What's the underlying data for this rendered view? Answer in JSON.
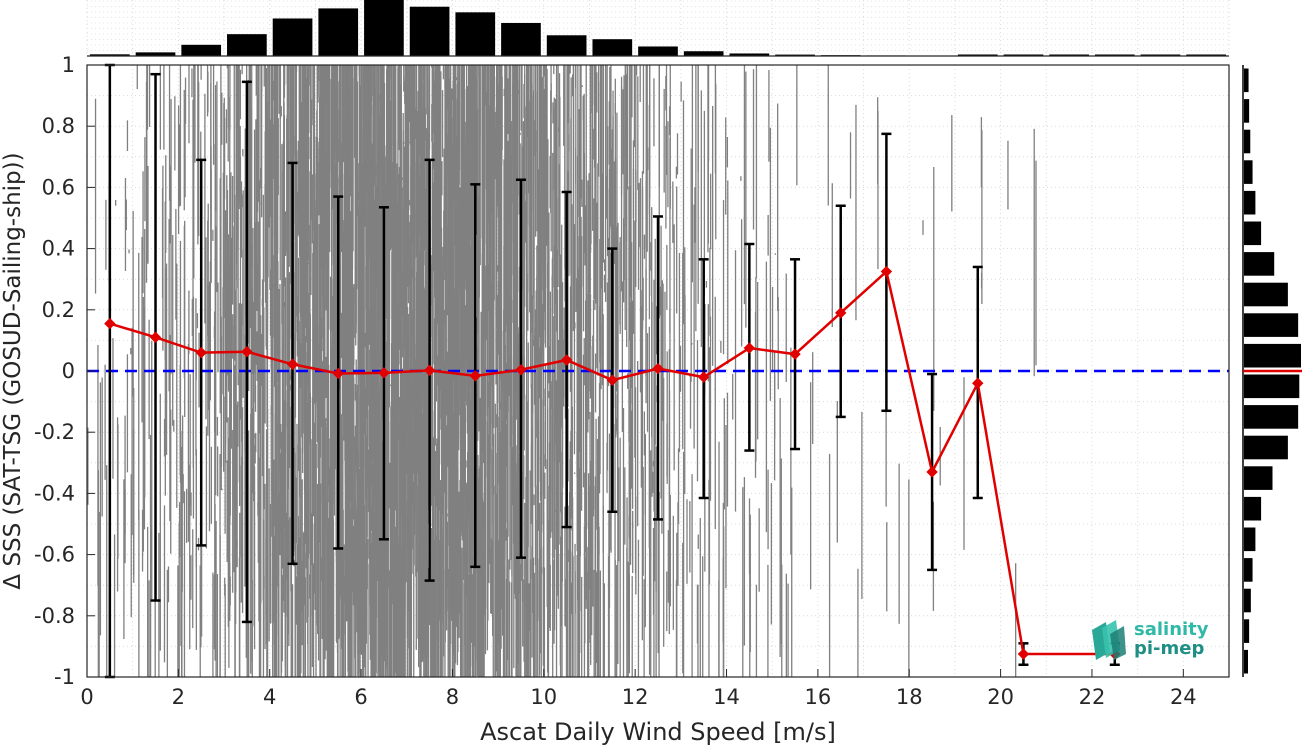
{
  "chart_data": {
    "type": "scatter",
    "xlabel": "Ascat Daily Wind Speed [m/s]",
    "ylabel": "Δ SSS (SAT-TSG (GOSUD-Sailing-ship))",
    "xlim": [
      0,
      25
    ],
    "ylim": [
      -1,
      1
    ],
    "xticks": [
      "0",
      "2",
      "4",
      "6",
      "8",
      "10",
      "12",
      "14",
      "16",
      "18",
      "20",
      "22",
      "24"
    ],
    "yticks": [
      "-1",
      "-0.8",
      "-0.6",
      "-0.4",
      "-0.2",
      "0",
      "0.2",
      "0.4",
      "0.6",
      "0.8",
      "1"
    ],
    "grid": true,
    "reference_line": {
      "y": 0,
      "color": "#0000ff",
      "style": "dashed"
    },
    "binned_mean": {
      "color": "#e00000",
      "x": [
        0.5,
        1.5,
        2.5,
        3.5,
        4.5,
        5.5,
        6.5,
        7.5,
        8.5,
        9.5,
        10.5,
        11.5,
        12.5,
        13.5,
        14.5,
        15.5,
        16.5,
        17.5,
        18.5,
        19.5,
        20.5,
        22.5
      ],
      "y": [
        0.155,
        0.11,
        0.06,
        0.063,
        0.022,
        -0.008,
        -0.006,
        0.002,
        -0.016,
        0.004,
        0.036,
        -0.03,
        0.008,
        -0.02,
        0.075,
        0.055,
        0.19,
        0.325,
        -0.33,
        -0.04,
        -0.925,
        -0.925
      ],
      "err_low": [
        -1,
        -0.75,
        -0.57,
        -0.82,
        -0.63,
        -0.58,
        -0.55,
        -0.685,
        -0.64,
        -0.61,
        -0.51,
        -0.46,
        -0.485,
        -0.415,
        -0.26,
        -0.255,
        -0.15,
        -0.13,
        -0.65,
        -0.415,
        -0.96,
        -0.96
      ],
      "err_high": [
        1,
        0.97,
        0.69,
        0.945,
        0.68,
        0.57,
        0.535,
        0.69,
        0.61,
        0.625,
        0.585,
        0.4,
        0.505,
        0.365,
        0.415,
        0.365,
        0.54,
        0.775,
        -0.01,
        0.34,
        -0.89,
        -0.89
      ]
    },
    "scatter_color": "#808080",
    "scatter_density": {
      "x": [
        0.5,
        1.5,
        2.5,
        3.5,
        4.5,
        5.5,
        6.5,
        7.5,
        8.5,
        9.5,
        10.5,
        11.5,
        12.5,
        13.5,
        14.5,
        15.5,
        16.5,
        17.5,
        18.5,
        19.5,
        20.5
      ],
      "relative_count": [
        0.05,
        0.1,
        0.2,
        0.38,
        0.65,
        0.85,
        1.0,
        0.92,
        0.8,
        0.62,
        0.38,
        0.3,
        0.18,
        0.1,
        0.05,
        0.025,
        0.012,
        0.006,
        0.003,
        0.002,
        0.001
      ]
    },
    "top_histogram": {
      "x": [
        0.5,
        1.5,
        2.5,
        3.5,
        4.5,
        5.5,
        6.5,
        7.5,
        8.5,
        9.5,
        10.5,
        11.5,
        12.5,
        13.5,
        14.5,
        15.5,
        16.5,
        17.5,
        18.5,
        19.5,
        20.5,
        21.5,
        22.5,
        23.5,
        24.5
      ],
      "relative_count": [
        0.03,
        0.065,
        0.2,
        0.39,
        0.67,
        0.85,
        1.0,
        0.88,
        0.78,
        0.59,
        0.37,
        0.3,
        0.17,
        0.085,
        0.045,
        0.025,
        0.015,
        0.01,
        0.006,
        0.0,
        0.0,
        0.0,
        0.0,
        0.0,
        0.0
      ]
    },
    "right_histogram": {
      "y": [
        -0.95,
        -0.85,
        -0.75,
        -0.65,
        -0.55,
        -0.45,
        -0.35,
        -0.25,
        -0.15,
        -0.05,
        0.05,
        0.15,
        0.25,
        0.35,
        0.45,
        0.55,
        0.65,
        0.75,
        0.85,
        0.95
      ],
      "relative_count": [
        0.07,
        0.09,
        0.12,
        0.15,
        0.2,
        0.3,
        0.5,
        0.77,
        0.95,
        0.97,
        1.0,
        0.95,
        0.77,
        0.53,
        0.3,
        0.2,
        0.15,
        0.11,
        0.09,
        0.08
      ],
      "median_line": {
        "y": 0.0,
        "color": "#e00000"
      }
    }
  },
  "logo": {
    "line1": "salinity",
    "line2": "pi-mep"
  }
}
